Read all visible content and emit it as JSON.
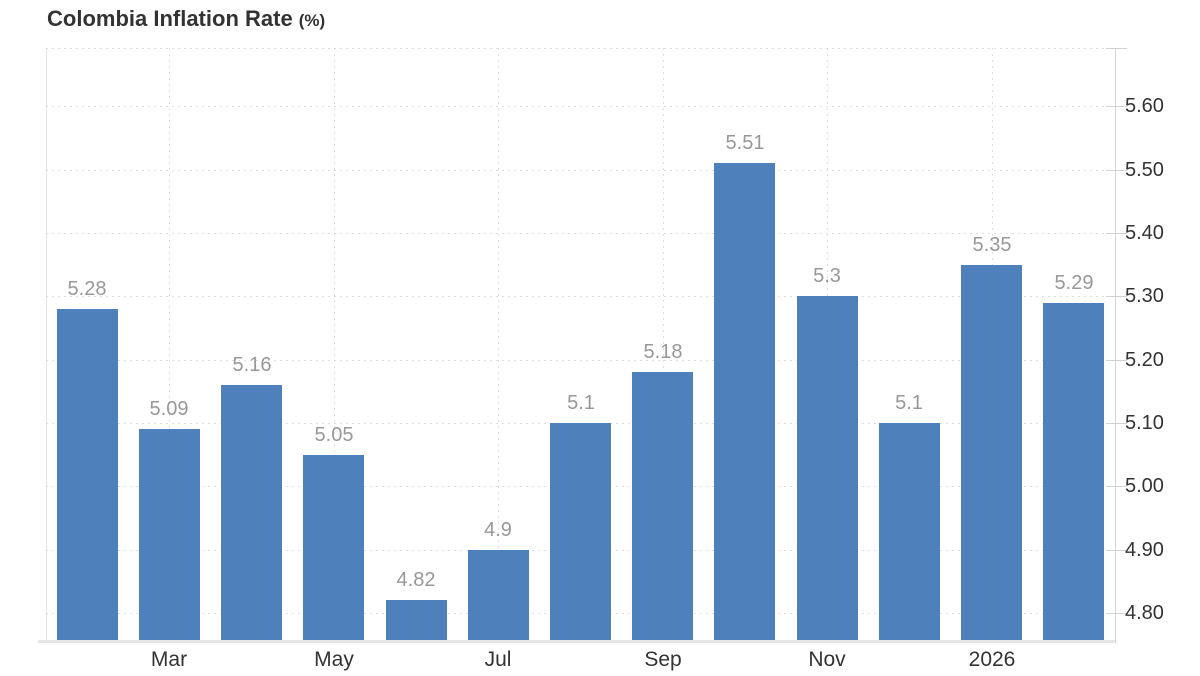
{
  "title": {
    "main": "Colombia Inflation Rate",
    "unit": "(%)"
  },
  "chart_data": {
    "type": "bar",
    "title": "Colombia Inflation Rate (%)",
    "xlabel": "",
    "ylabel": "",
    "categories": [
      "",
      "Mar",
      "",
      "May",
      "",
      "Jul",
      "",
      "Sep",
      "",
      "Nov",
      "",
      "2026",
      ""
    ],
    "values": [
      5.28,
      5.09,
      5.16,
      5.05,
      4.82,
      4.9,
      5.1,
      5.18,
      5.51,
      5.3,
      5.1,
      5.35,
      5.29
    ],
    "value_labels": [
      "5.28",
      "5.09",
      "5.16",
      "5.05",
      "4.82",
      "4.9",
      "5.1",
      "5.18",
      "5.51",
      "5.3",
      "5.1",
      "5.35",
      "5.29"
    ],
    "ylim": [
      4.756,
      5.692
    ],
    "yticks": [
      4.8,
      4.9,
      5.0,
      5.1,
      5.2,
      5.3,
      5.4,
      5.5,
      5.6
    ],
    "ytick_labels": [
      "4.80",
      "4.90",
      "5.00",
      "5.10",
      "5.20",
      "5.30",
      "5.40",
      "5.50",
      "5.60"
    ],
    "yaxis_side": "right",
    "grid": true,
    "gridline_style": "dotted",
    "legend": false,
    "colors": {
      "bar": "#4e80bc",
      "value_label": "#989898",
      "axis_text": "#333333",
      "gridline": "#dedede",
      "axis_line": "#d6d6d6",
      "background": "#ffffff"
    }
  }
}
